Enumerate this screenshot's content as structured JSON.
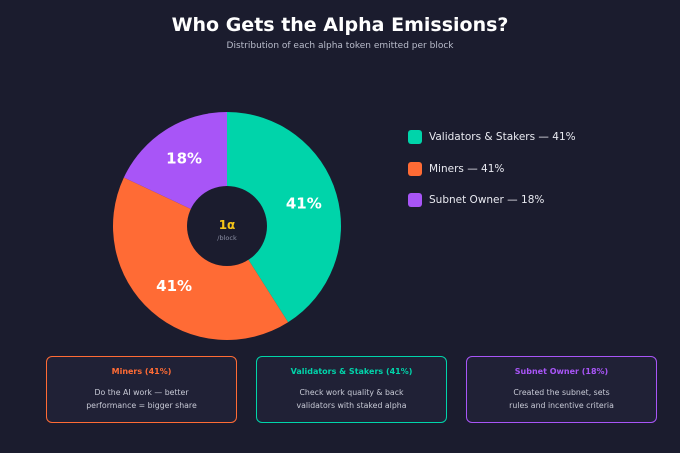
{
  "header": {
    "title": "Who Gets the Alpha Emissions?",
    "subtitle": "Distribution of each alpha token emitted per block"
  },
  "chart_data": {
    "type": "pie",
    "donut": true,
    "center_value": "1α",
    "center_unit": "/block",
    "slices": [
      {
        "name": "Validators & Stakers",
        "value": 41,
        "label": "41%",
        "legend": "Validators & Stakers — 41%",
        "color": "#00d4aa"
      },
      {
        "name": "Miners",
        "value": 41,
        "label": "41%",
        "legend": "Miners — 41%",
        "color": "#ff6b35"
      },
      {
        "name": "Subnet Owner",
        "value": 18,
        "label": "18%",
        "legend": "Subnet Owner — 18%",
        "color": "#a855f7"
      }
    ],
    "legend_position": "right",
    "start_angle": "12 o'clock",
    "direction": "clockwise"
  },
  "cards": [
    {
      "title": "Miners (41%)",
      "lines": [
        "Do the AI work — better",
        "performance = bigger share"
      ],
      "color": "#ff6b35"
    },
    {
      "title": "Validators & Stakers (41%)",
      "lines": [
        "Check work quality & back",
        "validators with staked alpha"
      ],
      "color": "#00d4aa"
    },
    {
      "title": "Subnet Owner (18%)",
      "lines": [
        "Created the subnet, sets",
        "rules and incentive criteria"
      ],
      "color": "#a855f7"
    }
  ],
  "colors": {
    "background": "#1b1c2e",
    "card_background": "#202136",
    "center_value": "#f5c518",
    "center_unit": "#8b8fa3"
  }
}
